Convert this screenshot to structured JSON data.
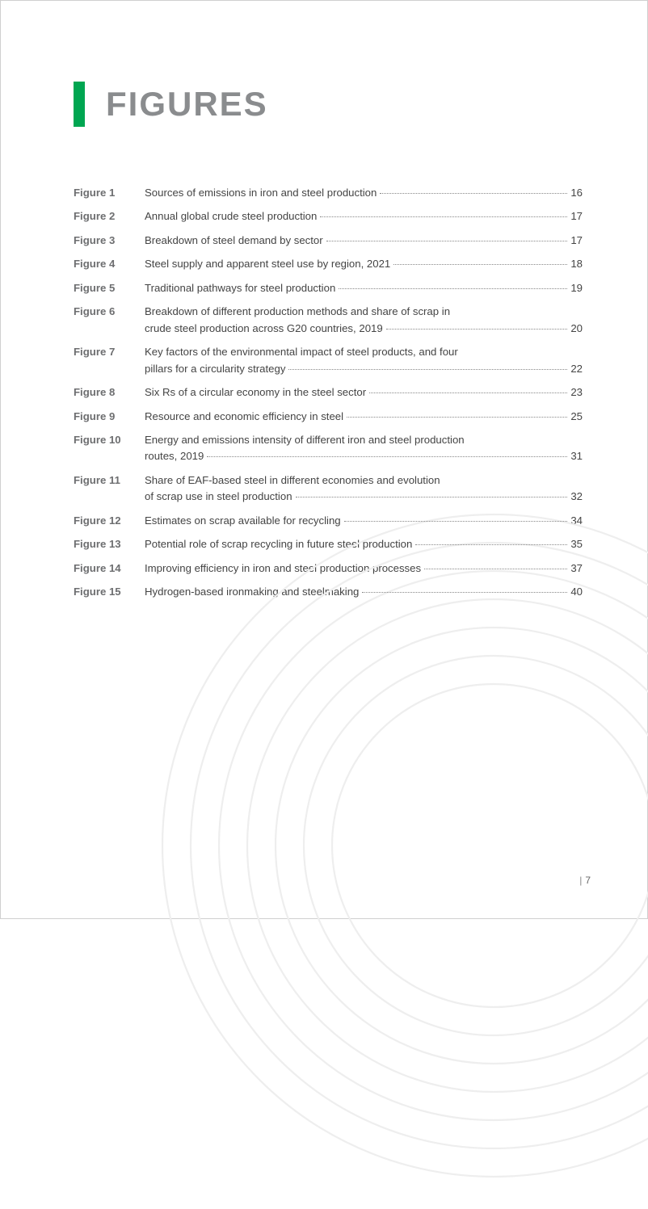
{
  "title": "FIGURES",
  "accent_color": "#00a651",
  "title_color": "#8a8c8e",
  "text_color": "#444444",
  "label_color": "#6d6e70",
  "leader_color": "#888888",
  "arc_color": "#eeeeee",
  "background_color": "#ffffff",
  "page_number": "7",
  "entries": [
    {
      "label": "Figure 1",
      "lines": [
        "Sources of emissions in iron and steel production"
      ],
      "page": "16"
    },
    {
      "label": "Figure 2",
      "lines": [
        "Annual global crude steel production"
      ],
      "page": "17"
    },
    {
      "label": "Figure 3",
      "lines": [
        "Breakdown of steel demand by sector"
      ],
      "page": "17"
    },
    {
      "label": "Figure 4",
      "lines": [
        "Steel supply and apparent steel use by region, 2021"
      ],
      "page": "18"
    },
    {
      "label": "Figure 5",
      "lines": [
        "Traditional pathways for steel production"
      ],
      "page": "19"
    },
    {
      "label": "Figure 6",
      "lines": [
        "Breakdown of different production methods and share of scrap in",
        "crude steel production across G20 countries, 2019"
      ],
      "page": "20"
    },
    {
      "label": "Figure 7",
      "lines": [
        "Key factors of the environmental impact of steel products, and four",
        "pillars for a circularity strategy"
      ],
      "page": "22"
    },
    {
      "label": "Figure 8",
      "lines": [
        "Six Rs of a circular economy in the steel sector"
      ],
      "page": "23"
    },
    {
      "label": "Figure 9",
      "lines": [
        "Resource and economic efficiency in steel"
      ],
      "page": "25"
    },
    {
      "label": "Figure 10",
      "lines": [
        "Energy and emissions intensity of different iron and steel production",
        "routes, 2019"
      ],
      "page": "31"
    },
    {
      "label": "Figure 11",
      "lines": [
        "Share of EAF-based steel in different economies and evolution",
        "of scrap use in steel production"
      ],
      "page": "32"
    },
    {
      "label": "Figure 12",
      "lines": [
        "Estimates on scrap available for recycling"
      ],
      "page": "34"
    },
    {
      "label": "Figure 13",
      "lines": [
        "Potential role of scrap recycling in future steel production"
      ],
      "page": "35"
    },
    {
      "label": "Figure 14",
      "lines": [
        "Improving efficiency in iron and steel production processes"
      ],
      "page": "37"
    },
    {
      "label": "Figure 15",
      "lines": [
        "Hydrogen-based ironmaking and steelmaking"
      ],
      "page": "40"
    }
  ]
}
